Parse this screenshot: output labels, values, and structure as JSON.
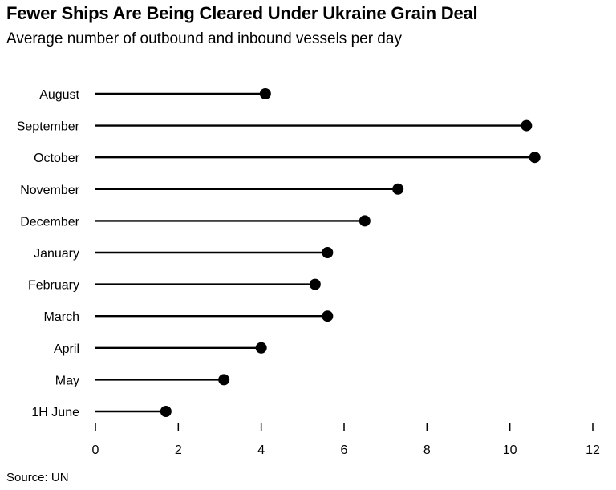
{
  "title": "Fewer Ships Are Being Cleared Under Ukraine Grain Deal",
  "subtitle": "Average number of outbound and inbound vessels per day",
  "source": "Source: UN",
  "chart_data": {
    "type": "lollipop",
    "categories": [
      "August",
      "September",
      "October",
      "November",
      "December",
      "January",
      "February",
      "March",
      "April",
      "May",
      "1H June"
    ],
    "values": [
      4.1,
      10.4,
      10.6,
      7.3,
      6.5,
      5.6,
      5.3,
      5.6,
      4.0,
      3.1,
      1.7
    ],
    "xlim": [
      0,
      12
    ],
    "xticks": [
      0,
      2,
      4,
      6,
      8,
      10,
      12
    ],
    "xlabel": "",
    "ylabel": "",
    "grid": false,
    "color": "#000000"
  }
}
